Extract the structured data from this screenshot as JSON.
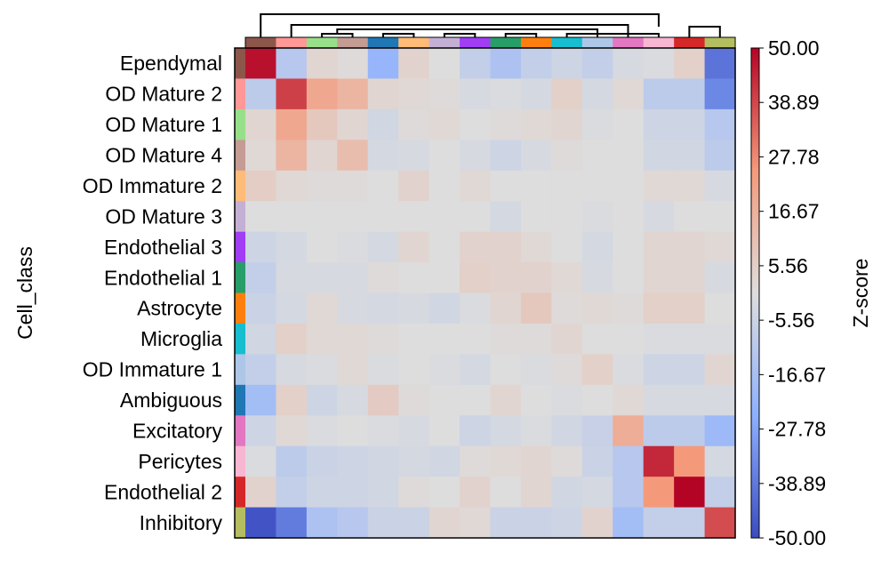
{
  "chart_data": {
    "type": "heatmap",
    "ylabel": "Cell_class",
    "colorbar_label": "Z-score",
    "row_labels": [
      "Ependymal",
      "OD Mature 2",
      "OD Mature 1",
      "OD Mature 4",
      "OD Immature 2",
      "OD Mature 3",
      "Endothelial 3",
      "Endothelial 1",
      "Astrocyte",
      "Microglia",
      "OD Immature 1",
      "Ambiguous",
      "Excitatory",
      "Pericytes",
      "Endothelial 2",
      "Inhibitory"
    ],
    "row_colors": [
      "#8c564b",
      "#ff9896",
      "#98df8a",
      "#c49c94",
      "#ffbb78",
      "#c5b0d5",
      "#a13df5",
      "#279e68",
      "#ff7f0e",
      "#17becf",
      "#aec7e8",
      "#1f77b4",
      "#e377c2",
      "#f7b6d2",
      "#d62728",
      "#b5bd61"
    ],
    "column_colors": [
      "#8c564b",
      "#ff9896",
      "#98df8a",
      "#c49c94",
      "#1f77b4",
      "#ffbb78",
      "#c5b0d5",
      "#a13df5",
      "#279e68",
      "#ff7f0e",
      "#17becf",
      "#aec7e8",
      "#e377c2",
      "#f7b6d2",
      "#d62728",
      "#b5bd61"
    ],
    "values": [
      [
        48,
        -12,
        3,
        1,
        -22,
        4,
        0,
        -8,
        -15,
        -8,
        -5,
        -8,
        -2,
        -1,
        5,
        -40
      ],
      [
        -10,
        40,
        20,
        15,
        3,
        2,
        1,
        -2,
        -1,
        -3,
        5,
        -3,
        2,
        -10,
        -10,
        -35
      ],
      [
        3,
        20,
        8,
        3,
        -4,
        1,
        2,
        0,
        1,
        2,
        3,
        -1,
        0,
        -5,
        -5,
        -12
      ],
      [
        2,
        15,
        3,
        12,
        -3,
        -2,
        0,
        -2,
        -5,
        -2,
        1,
        0,
        0,
        -4,
        -4,
        -10
      ],
      [
        6,
        2,
        1,
        1,
        0,
        4,
        0,
        2,
        0,
        0,
        0,
        0,
        0,
        2,
        2,
        -2
      ],
      [
        0,
        0,
        0,
        0,
        0,
        0,
        0,
        0,
        -3,
        0,
        0,
        -1,
        0,
        -2,
        0,
        0
      ],
      [
        -5,
        -3,
        0,
        -1,
        -3,
        3,
        0,
        4,
        4,
        2,
        0,
        -3,
        0,
        3,
        3,
        2
      ],
      [
        -8,
        -2,
        -2,
        -2,
        1,
        0,
        0,
        5,
        4,
        4,
        2,
        -2,
        0,
        3,
        3,
        -2
      ],
      [
        -6,
        -3,
        2,
        -2,
        -3,
        -2,
        -4,
        -1,
        3,
        8,
        1,
        2,
        1,
        5,
        5,
        0
      ],
      [
        -4,
        5,
        2,
        2,
        1,
        0,
        0,
        0,
        1,
        1,
        3,
        0,
        0,
        -1,
        -1,
        -1
      ],
      [
        -8,
        -2,
        -1,
        2,
        -1,
        0,
        -1,
        -3,
        0,
        -1,
        1,
        5,
        -1,
        -5,
        -5,
        3
      ],
      [
        -18,
        5,
        -5,
        -2,
        7,
        1,
        0,
        0,
        3,
        0,
        -1,
        0,
        2,
        -2,
        -2,
        -2
      ],
      [
        -5,
        2,
        -1,
        0,
        -1,
        -2,
        0,
        -5,
        -3,
        -1,
        -4,
        -7,
        18,
        -10,
        -10,
        -20
      ],
      [
        -1,
        -10,
        -6,
        -5,
        -4,
        -3,
        -4,
        1,
        2,
        3,
        1,
        -6,
        -12,
        44,
        25,
        -3
      ],
      [
        4,
        -8,
        -5,
        -5,
        -4,
        1,
        0,
        4,
        0,
        3,
        -4,
        -3,
        -12,
        25,
        50,
        -8
      ],
      [
        -48,
        -38,
        -15,
        -12,
        -6,
        -6,
        3,
        2,
        -6,
        -6,
        -5,
        4,
        -18,
        -8,
        -8,
        38
      ]
    ],
    "vmin": -50,
    "vmax": 50,
    "colorbar_ticks": [
      "50.00",
      "38.89",
      "27.78",
      "16.67",
      "5.56",
      "-5.56",
      "-16.67",
      "-27.78",
      "-38.89",
      "-50.00"
    ],
    "colormap": "coolwarm",
    "dendrogram": "top"
  }
}
